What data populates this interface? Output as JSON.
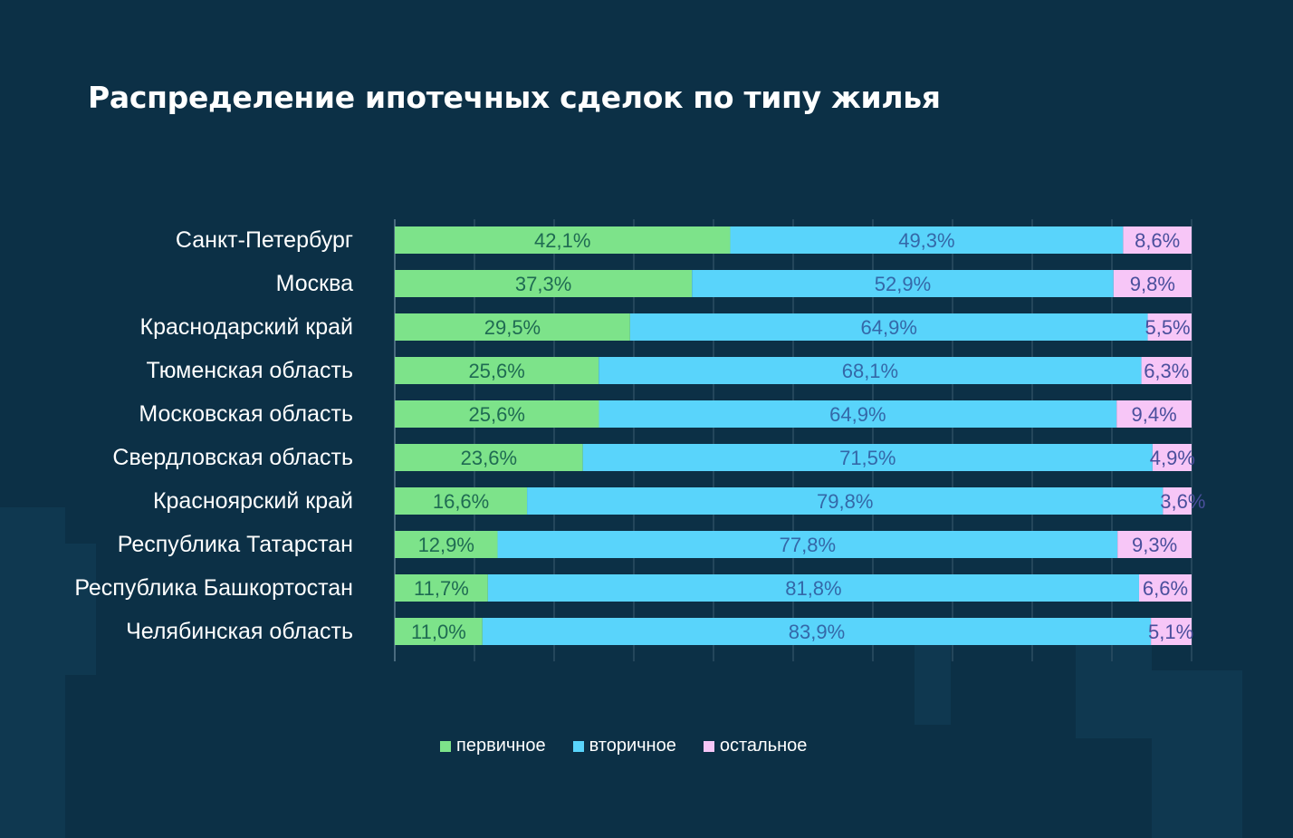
{
  "title": "Распределение ипотечных сделок по типу жилья",
  "colors": {
    "background": "#0c3046",
    "primary": "#7de38a",
    "secondary": "#59d4fb",
    "other": "#f7c6f7",
    "primary_text": "#1f6b52",
    "secondary_text": "#3468a8",
    "other_text": "#4a4f9c",
    "grid": "#2c4d62"
  },
  "chart_data": {
    "type": "bar",
    "orientation": "horizontal",
    "stacked": true,
    "title": "Распределение ипотечных сделок по типу жилья",
    "categories": [
      "Санкт-Петербург",
      "Москва",
      "Краснодарский край",
      "Тюменская область",
      "Московская область",
      "Свердловская область",
      "Красноярский край",
      "Республика Татарстан",
      "Республика Башкортостан",
      "Челябинская область"
    ],
    "series": [
      {
        "name": "первичное",
        "values": [
          42.1,
          37.3,
          29.5,
          25.6,
          25.6,
          23.6,
          16.6,
          12.9,
          11.7,
          11.0
        ],
        "labels": [
          "42,1%",
          "37,3%",
          "29,5%",
          "25,6%",
          "25,6%",
          "23,6%",
          "16,6%",
          "12,9%",
          "11,7%",
          "11,0%"
        ]
      },
      {
        "name": "вторичное",
        "values": [
          49.3,
          52.9,
          64.9,
          68.1,
          64.9,
          71.5,
          79.8,
          77.8,
          81.8,
          83.9
        ],
        "labels": [
          "49,3%",
          "52,9%",
          "64,9%",
          "68,1%",
          "64,9%",
          "71,5%",
          "79,8%",
          "77,8%",
          "81,8%",
          "83,9%"
        ]
      },
      {
        "name": "остальное",
        "values": [
          8.6,
          9.8,
          5.5,
          6.3,
          9.4,
          4.9,
          3.6,
          9.3,
          6.6,
          5.1
        ],
        "labels": [
          "8,6%",
          "9,8%",
          "5,5%",
          "6,3%",
          "9,4%",
          "4,9%",
          "3,6%",
          "9,3%",
          "6,6%",
          "5,1%"
        ]
      }
    ],
    "xlim": [
      0,
      100
    ],
    "grid": true,
    "legend": "bottom-center"
  }
}
